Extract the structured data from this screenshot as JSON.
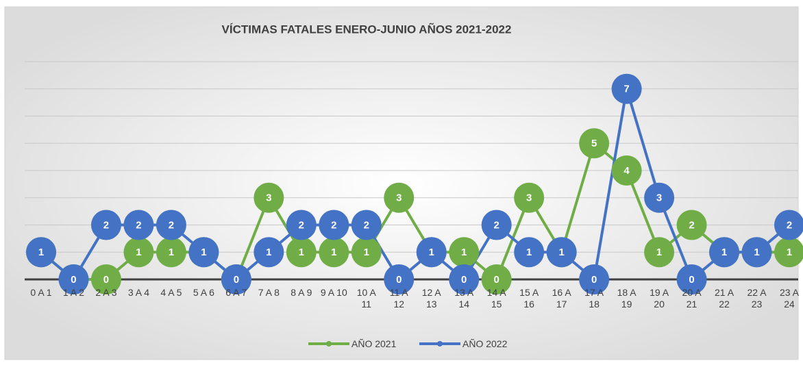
{
  "chart_data": {
    "type": "line",
    "title": "VÍCTIMAS FATALES ENERO-JUNIO AÑOS 2021-2022",
    "categories": [
      "0 A 1",
      "1 A 2",
      "2 A 3",
      "3 A 4",
      "4 A 5",
      "5 A 6",
      "6 A 7",
      "7 A 8",
      "8 A 9",
      "9 A 10",
      "10 A 11",
      "11 A 12",
      "12 A 13",
      "13 A 14",
      "14 A 15",
      "15 A 16",
      "16 A 17",
      "17 A 18",
      "18 A 19",
      "19 A 20",
      "20 A 21",
      "21 A 22",
      "22 A 23",
      "23 A 24"
    ],
    "series": [
      {
        "name": "AÑO 2021",
        "color": "#70ad47",
        "values": [
          1,
          0,
          0,
          1,
          1,
          1,
          0,
          3,
          1,
          1,
          1,
          3,
          1,
          1,
          0,
          3,
          1,
          5,
          4,
          1,
          2,
          1,
          1,
          1
        ]
      },
      {
        "name": "AÑO 2022",
        "color": "#4472c4",
        "values": [
          1,
          0,
          2,
          2,
          2,
          1,
          0,
          1,
          2,
          2,
          2,
          0,
          1,
          0,
          2,
          1,
          1,
          0,
          7,
          3,
          0,
          1,
          1,
          2
        ]
      }
    ],
    "ylim": [
      0,
      8
    ],
    "yticks": [
      0,
      1,
      2,
      3,
      4,
      5,
      6,
      7,
      8
    ],
    "grid": true,
    "legend": "bottom"
  }
}
